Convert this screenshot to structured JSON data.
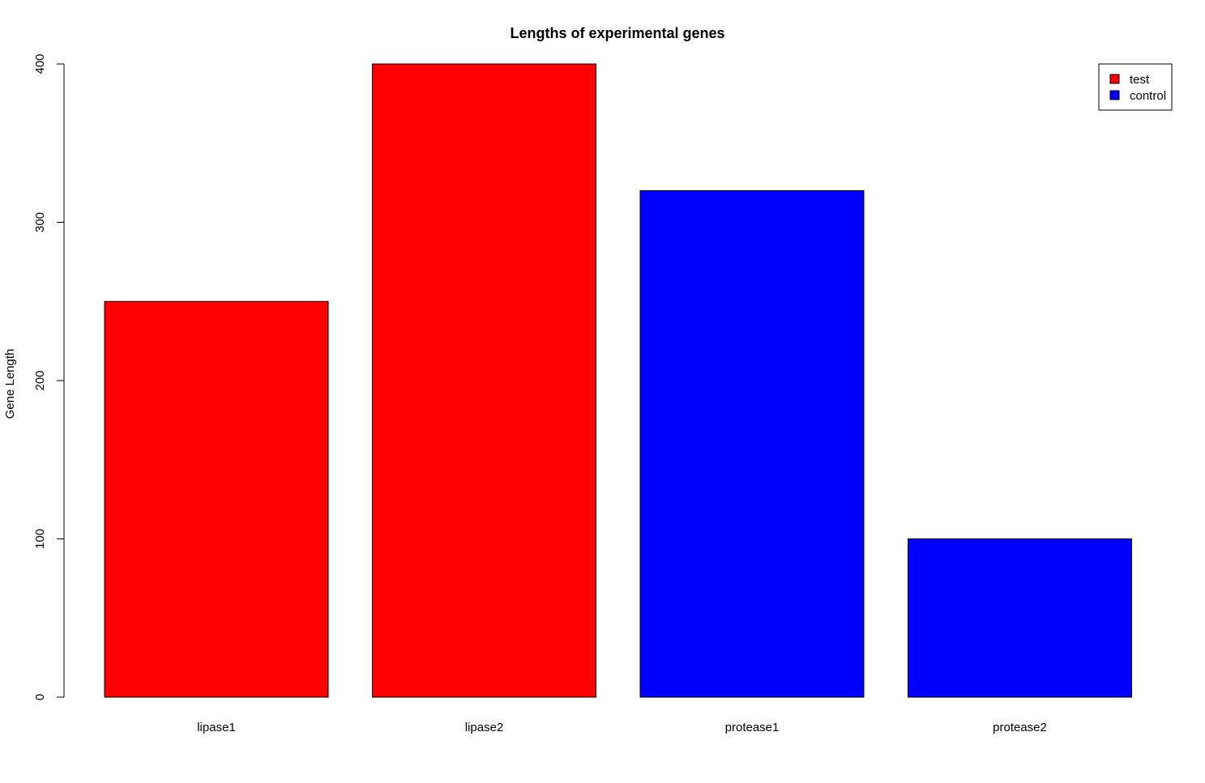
{
  "chart_data": {
    "type": "bar",
    "title": "Lengths of experimental genes",
    "xlabel": "",
    "ylabel": "Gene Length",
    "categories": [
      "lipase1",
      "lipase2",
      "protease1",
      "protease2"
    ],
    "values": [
      250,
      400,
      320,
      100
    ],
    "bar_groups": [
      "test",
      "test",
      "control",
      "control"
    ],
    "ylim": [
      0,
      400
    ],
    "yticks": [
      0,
      100,
      200,
      300,
      400
    ],
    "grid": false,
    "legend": {
      "position": "top-right",
      "entries": [
        {
          "label": "test",
          "color": "#ff0000"
        },
        {
          "label": "control",
          "color": "#0000ff"
        }
      ]
    }
  }
}
